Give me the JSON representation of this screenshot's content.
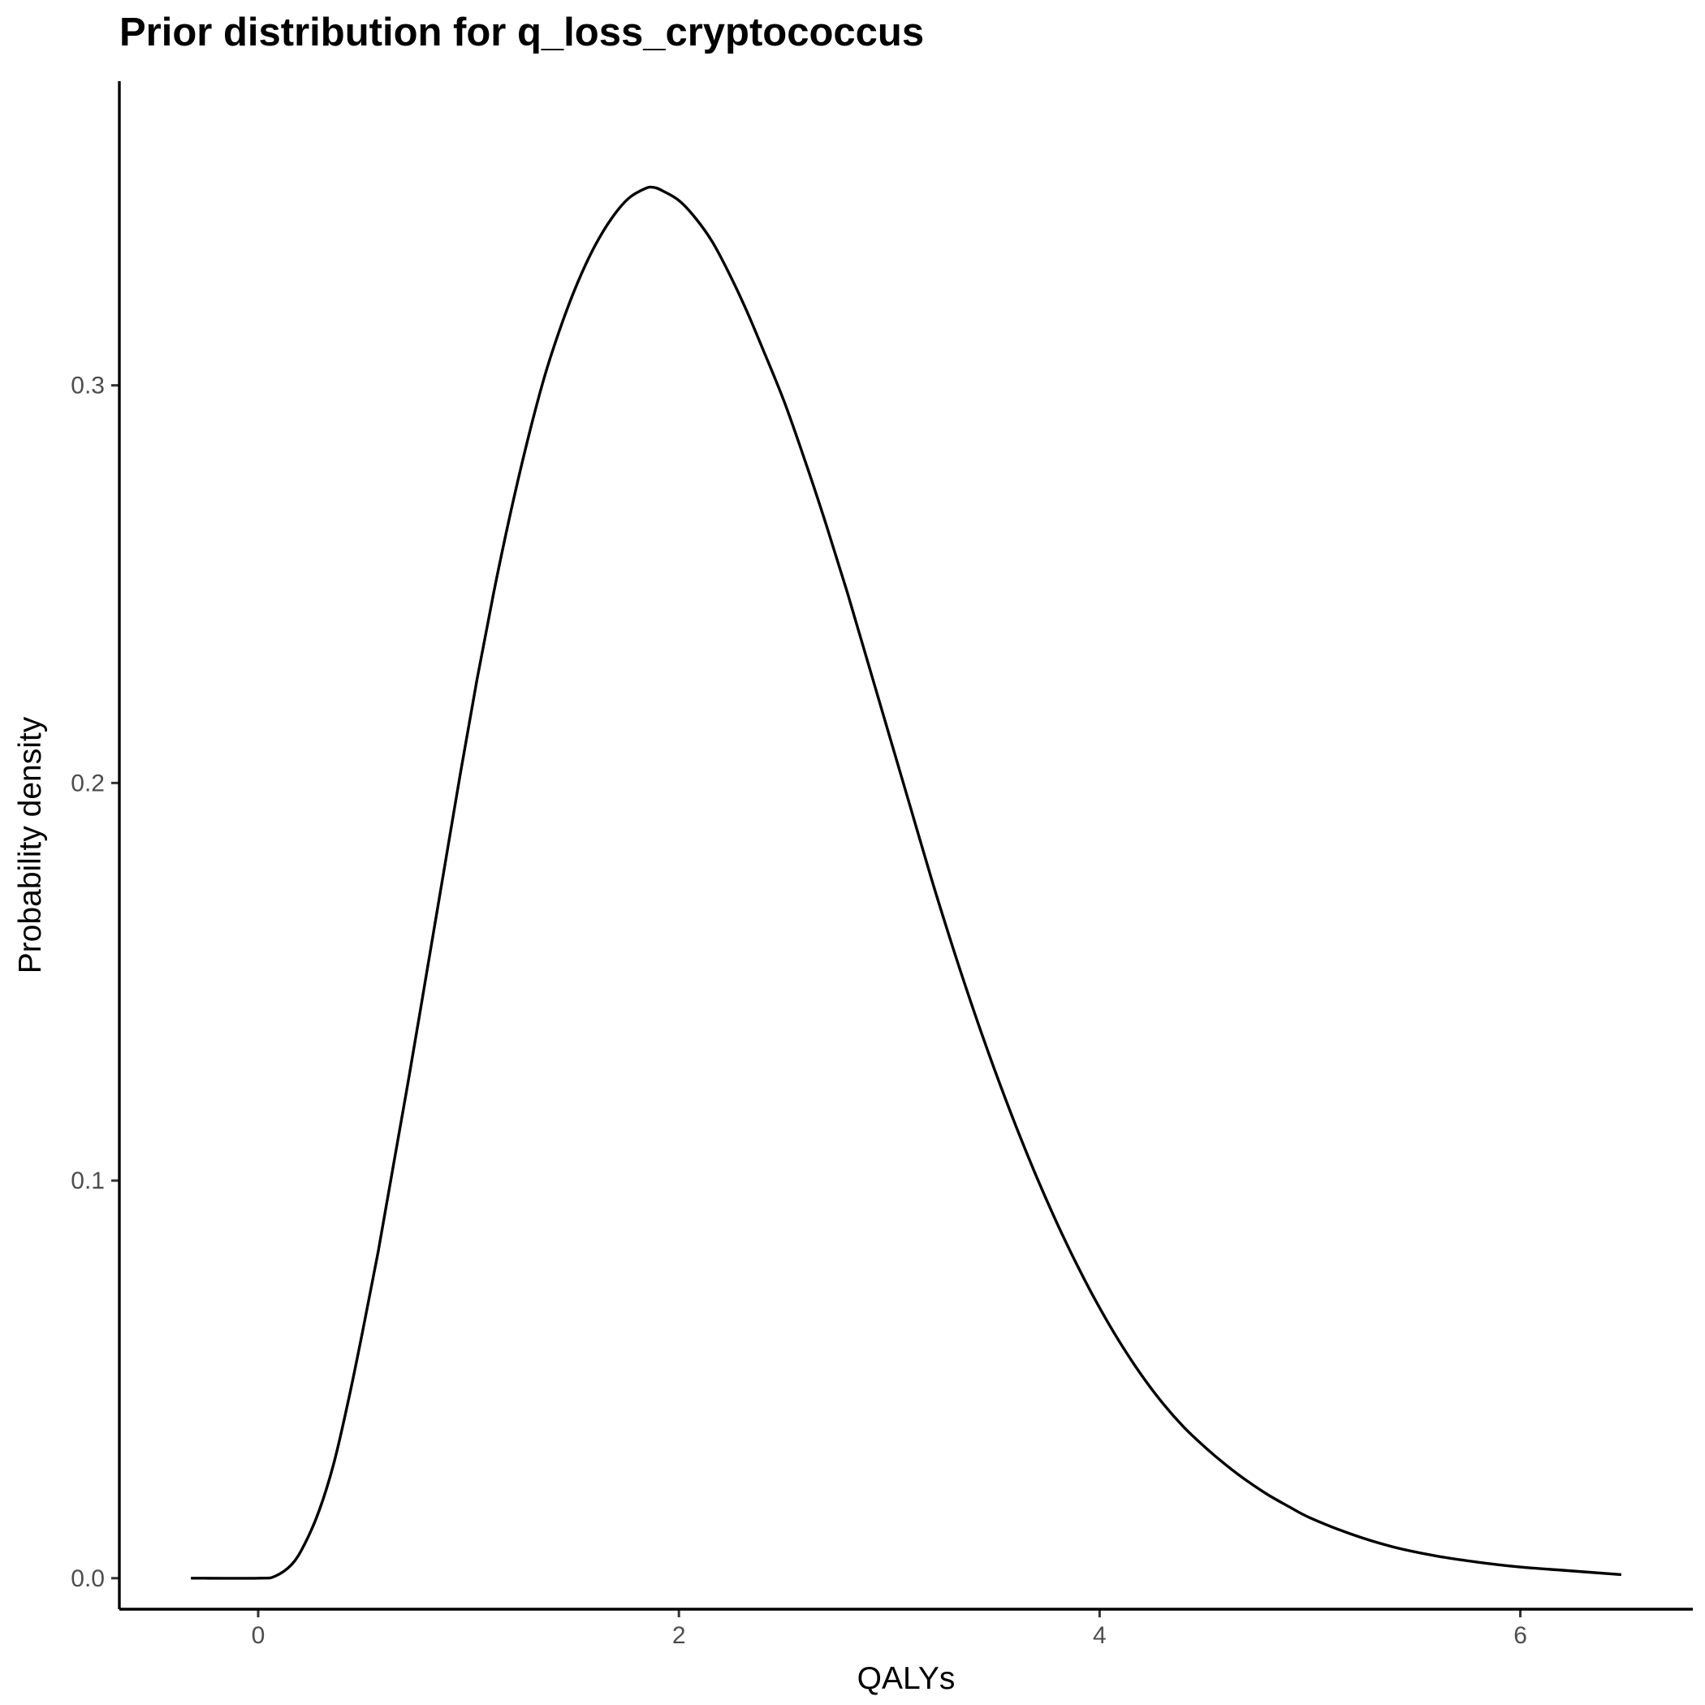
{
  "title": {
    "prefix": "Prior distribution for ",
    "variable": "q_loss_cryptococcus"
  },
  "chart_data": {
    "type": "line",
    "title": "Prior distribution for q_loss_cryptococcus",
    "xlabel": "QALYs",
    "ylabel": "Probability density",
    "xlim": [
      -0.66,
      6.82
    ],
    "ylim": [
      -0.0078,
      0.3765
    ],
    "x_ticks": [
      0,
      2,
      4,
      6
    ],
    "x_tick_labels": [
      "0",
      "2",
      "4",
      "6"
    ],
    "y_ticks": [
      0.0,
      0.1,
      0.2,
      0.3
    ],
    "y_tick_labels": [
      "0.0",
      "0.1",
      "0.2",
      "0.3"
    ],
    "grid": false,
    "legend": "none",
    "line_color": "#000000",
    "series": [
      {
        "x": [
          -0.32,
          0.0,
          0.08,
          0.16,
          0.22,
          0.29,
          0.36,
          0.43,
          0.5,
          0.57,
          0.64,
          0.72,
          0.8,
          0.88,
          0.96,
          1.04,
          1.12,
          1.2,
          1.28,
          1.36,
          1.44,
          1.52,
          1.6,
          1.68,
          1.76,
          1.84,
          1.88,
          1.92,
          2.0,
          2.08,
          2.16,
          2.24,
          2.32,
          2.4,
          2.5,
          2.6,
          2.7,
          2.8,
          2.9,
          3.0,
          3.1,
          3.2,
          3.3,
          3.4,
          3.5,
          3.6,
          3.7,
          3.8,
          3.9,
          4.0,
          4.1,
          4.2,
          4.3,
          4.4,
          4.5,
          4.6,
          4.7,
          4.8,
          4.9,
          5.0,
          5.2,
          5.4,
          5.6,
          5.8,
          6.0,
          6.2,
          6.48
        ],
        "y": [
          0.0,
          0.0,
          0.0005,
          0.0035,
          0.0085,
          0.017,
          0.029,
          0.045,
          0.063,
          0.082,
          0.103,
          0.127,
          0.152,
          0.177,
          0.202,
          0.226,
          0.248,
          0.268,
          0.286,
          0.302,
          0.315,
          0.326,
          0.335,
          0.342,
          0.347,
          0.3495,
          0.3498,
          0.349,
          0.3465,
          0.342,
          0.336,
          0.328,
          0.319,
          0.309,
          0.296,
          0.281,
          0.265,
          0.248,
          0.23,
          0.212,
          0.194,
          0.176,
          0.159,
          0.143,
          0.128,
          0.114,
          0.101,
          0.089,
          0.078,
          0.068,
          0.059,
          0.051,
          0.044,
          0.038,
          0.033,
          0.0285,
          0.0245,
          0.021,
          0.018,
          0.0152,
          0.011,
          0.0078,
          0.0056,
          0.004,
          0.0028,
          0.002,
          0.0009
        ]
      }
    ]
  }
}
